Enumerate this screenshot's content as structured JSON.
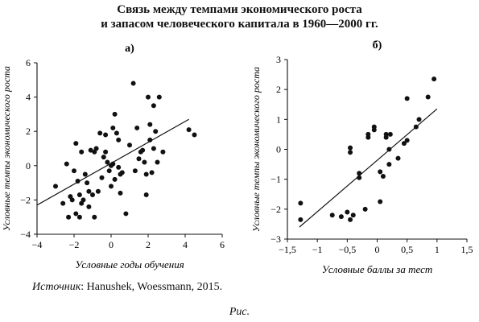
{
  "title_line1": "Связь между темпами экономического роста",
  "title_line2": "и запасом человеческого капитала в 1960—2000 гг.",
  "source_label": "Источник",
  "source_text": ": Hanushek, Woessmann, 2015.",
  "caption": "Рис.",
  "chart_data": [
    {
      "type": "scatter",
      "panel_label": "а)",
      "xlabel": "Условные годы обучения",
      "ylabel": "Условные темпы экономического роста",
      "xlim": [
        -4,
        6
      ],
      "ylim": [
        -4,
        6
      ],
      "xticks": [
        -4,
        -2,
        0,
        2,
        4,
        6
      ],
      "yticks": [
        -4,
        -2,
        0,
        2,
        4,
        6
      ],
      "tick_labels_x": [
        "−4",
        "−2",
        "0",
        "2",
        "4",
        "6"
      ],
      "tick_labels_y": [
        "−4",
        "−2",
        "0",
        "2",
        "4",
        "6"
      ],
      "fit_line": {
        "x": [
          -4,
          4.2
        ],
        "y": [
          -2.3,
          2.7
        ]
      },
      "points": [
        [
          -3.0,
          -1.2
        ],
        [
          -2.6,
          -2.2
        ],
        [
          -2.4,
          0.1
        ],
        [
          -2.3,
          -3.0
        ],
        [
          -2.2,
          -1.8
        ],
        [
          -2.1,
          -2.0
        ],
        [
          -2.0,
          -0.3
        ],
        [
          -1.9,
          1.3
        ],
        [
          -1.9,
          -2.8
        ],
        [
          -1.8,
          -0.9
        ],
        [
          -1.7,
          -1.7
        ],
        [
          -1.7,
          -3.0
        ],
        [
          -1.6,
          -2.2
        ],
        [
          -1.6,
          0.8
        ],
        [
          -1.5,
          -2.0
        ],
        [
          -1.4,
          -0.5
        ],
        [
          -1.3,
          -1.0
        ],
        [
          -1.2,
          -1.5
        ],
        [
          -1.2,
          -2.4
        ],
        [
          -1.1,
          0.9
        ],
        [
          -1.0,
          -1.7
        ],
        [
          -0.9,
          -3.0
        ],
        [
          -0.9,
          0.8
        ],
        [
          -0.8,
          1.0
        ],
        [
          -0.7,
          -1.5
        ],
        [
          -0.6,
          1.9
        ],
        [
          -0.5,
          -0.7
        ],
        [
          -0.4,
          0.5
        ],
        [
          -0.3,
          0.8
        ],
        [
          -0.3,
          1.8
        ],
        [
          -0.2,
          0.2
        ],
        [
          -0.1,
          -0.3
        ],
        [
          0.0,
          0.0
        ],
        [
          0.0,
          -1.2
        ],
        [
          0.1,
          2.2
        ],
        [
          0.1,
          0.1
        ],
        [
          0.2,
          3.0
        ],
        [
          0.2,
          -0.8
        ],
        [
          0.3,
          1.9
        ],
        [
          0.4,
          -0.1
        ],
        [
          0.4,
          1.5
        ],
        [
          0.5,
          -0.5
        ],
        [
          0.5,
          -1.6
        ],
        [
          0.6,
          -0.4
        ],
        [
          0.8,
          -2.8
        ],
        [
          1.0,
          1.2
        ],
        [
          1.2,
          4.8
        ],
        [
          1.3,
          -0.3
        ],
        [
          1.4,
          2.2
        ],
        [
          1.5,
          0.4
        ],
        [
          1.6,
          0.8
        ],
        [
          1.7,
          0.9
        ],
        [
          1.8,
          0.2
        ],
        [
          1.9,
          -0.5
        ],
        [
          1.9,
          -1.7
        ],
        [
          2.0,
          4.0
        ],
        [
          2.1,
          2.4
        ],
        [
          2.1,
          1.5
        ],
        [
          2.2,
          -0.4
        ],
        [
          2.3,
          1.0
        ],
        [
          2.3,
          3.5
        ],
        [
          2.4,
          2.0
        ],
        [
          2.5,
          0.2
        ],
        [
          2.6,
          4.0
        ],
        [
          2.8,
          0.8
        ],
        [
          4.2,
          2.1
        ],
        [
          4.5,
          1.8
        ]
      ]
    },
    {
      "type": "scatter",
      "panel_label": "б)",
      "xlabel": "Условные баллы за тест",
      "ylabel": "Условные темпы экономического роста",
      "xlim": [
        -1.5,
        1.5
      ],
      "ylim": [
        -3,
        3
      ],
      "xticks": [
        -1.5,
        -1,
        -0.5,
        0,
        0.5,
        1,
        1.5
      ],
      "yticks": [
        -3,
        -2,
        -1,
        0,
        1,
        2,
        3
      ],
      "tick_labels_x": [
        "−1,5",
        "−1",
        "−0,5",
        "0",
        "0,5",
        "1",
        "1,5"
      ],
      "tick_labels_y": [
        "−3",
        "−2",
        "−1",
        "0",
        "1",
        "2",
        "3"
      ],
      "fit_line": {
        "x": [
          -1.3,
          1.0
        ],
        "y": [
          -2.6,
          1.35
        ]
      },
      "points": [
        [
          -1.28,
          -1.8
        ],
        [
          -1.28,
          -2.35
        ],
        [
          -0.75,
          -2.2
        ],
        [
          -0.6,
          -2.25
        ],
        [
          -0.5,
          -2.1
        ],
        [
          -0.45,
          -2.35
        ],
        [
          -0.45,
          -0.1
        ],
        [
          -0.45,
          0.05
        ],
        [
          -0.4,
          -2.2
        ],
        [
          -0.3,
          -0.8
        ],
        [
          -0.3,
          -0.95
        ],
        [
          -0.2,
          -2.0
        ],
        [
          -0.15,
          0.4
        ],
        [
          -0.15,
          0.5
        ],
        [
          -0.05,
          0.75
        ],
        [
          -0.05,
          0.65
        ],
        [
          0.05,
          -1.75
        ],
        [
          0.05,
          -0.75
        ],
        [
          0.1,
          -0.9
        ],
        [
          0.15,
          0.4
        ],
        [
          0.15,
          0.5
        ],
        [
          0.2,
          -0.5
        ],
        [
          0.2,
          0.0
        ],
        [
          0.22,
          0.5
        ],
        [
          0.35,
          -0.3
        ],
        [
          0.45,
          0.2
        ],
        [
          0.5,
          0.3
        ],
        [
          0.5,
          1.7
        ],
        [
          0.65,
          0.75
        ],
        [
          0.7,
          1.0
        ],
        [
          0.85,
          1.75
        ],
        [
          0.95,
          2.35
        ]
      ]
    }
  ]
}
